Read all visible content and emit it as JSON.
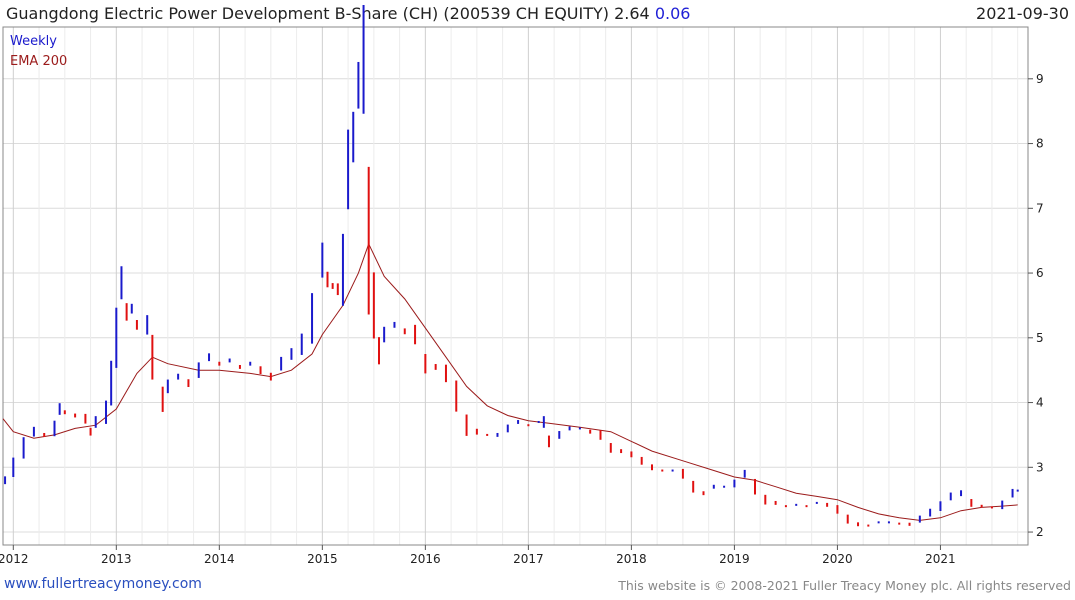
{
  "header": {
    "title": "Guangdong Electric Power Development B-Share (CH) (200539 CH EQUITY) 2.64",
    "change": "0.06",
    "date": "2021-09-30"
  },
  "footer": {
    "left": "www.fullertreacymoney.com",
    "right": "This website is © 2008-2021 Fuller Treacy Money plc. All rights reserved"
  },
  "colors": {
    "up": "#1a1acc",
    "down": "#e01010",
    "ema": "#9b1b1b",
    "grid": "#dcdcdc"
  },
  "chart_data": {
    "type": "line",
    "title": "Guangdong Electric Power Development B-Share (CH) (200539 CH EQUITY)",
    "legend": [
      "Weekly",
      "EMA 200"
    ],
    "legend_placement": "top-left",
    "grid": true,
    "x_ticks": [
      "2012",
      "2013",
      "2014",
      "2015",
      "2016",
      "2017",
      "2018",
      "2019",
      "2020",
      "2021"
    ],
    "y_ticks": [
      2,
      3,
      4,
      5,
      6,
      7,
      8,
      9
    ],
    "xlim": [
      2011.9,
      2021.85
    ],
    "ylim": [
      1.8,
      9.8
    ],
    "series": [
      {
        "name": "Weekly",
        "points": [
          [
            2011.92,
            2.8
          ],
          [
            2012.0,
            3.0
          ],
          [
            2012.1,
            3.3
          ],
          [
            2012.2,
            3.55
          ],
          [
            2012.3,
            3.5
          ],
          [
            2012.4,
            3.6
          ],
          [
            2012.45,
            3.9
          ],
          [
            2012.5,
            3.85
          ],
          [
            2012.6,
            3.8
          ],
          [
            2012.7,
            3.75
          ],
          [
            2012.75,
            3.55
          ],
          [
            2012.8,
            3.7
          ],
          [
            2012.9,
            3.85
          ],
          [
            2012.95,
            4.3
          ],
          [
            2013.0,
            5.0
          ],
          [
            2013.05,
            5.85
          ],
          [
            2013.1,
            5.4
          ],
          [
            2013.15,
            5.45
          ],
          [
            2013.2,
            5.2
          ],
          [
            2013.3,
            5.2
          ],
          [
            2013.35,
            4.7
          ],
          [
            2013.45,
            4.05
          ],
          [
            2013.5,
            4.25
          ],
          [
            2013.6,
            4.4
          ],
          [
            2013.7,
            4.3
          ],
          [
            2013.8,
            4.5
          ],
          [
            2013.9,
            4.7
          ],
          [
            2014.0,
            4.6
          ],
          [
            2014.1,
            4.65
          ],
          [
            2014.2,
            4.55
          ],
          [
            2014.3,
            4.6
          ],
          [
            2014.4,
            4.5
          ],
          [
            2014.5,
            4.4
          ],
          [
            2014.6,
            4.6
          ],
          [
            2014.7,
            4.75
          ],
          [
            2014.8,
            4.9
          ],
          [
            2014.9,
            5.3
          ],
          [
            2015.0,
            6.2
          ],
          [
            2015.05,
            5.9
          ],
          [
            2015.1,
            5.8
          ],
          [
            2015.15,
            5.75
          ],
          [
            2015.2,
            6.05
          ],
          [
            2015.25,
            7.6
          ],
          [
            2015.3,
            8.1
          ],
          [
            2015.35,
            8.9
          ],
          [
            2015.4,
            9.3
          ],
          [
            2015.45,
            6.5
          ],
          [
            2015.5,
            5.5
          ],
          [
            2015.55,
            4.8
          ],
          [
            2015.6,
            5.05
          ],
          [
            2015.7,
            5.2
          ],
          [
            2015.8,
            5.1
          ],
          [
            2015.9,
            5.05
          ],
          [
            2016.0,
            4.6
          ],
          [
            2016.1,
            4.55
          ],
          [
            2016.2,
            4.45
          ],
          [
            2016.3,
            4.1
          ],
          [
            2016.4,
            3.65
          ],
          [
            2016.5,
            3.55
          ],
          [
            2016.6,
            3.5
          ],
          [
            2016.7,
            3.5
          ],
          [
            2016.8,
            3.6
          ],
          [
            2016.9,
            3.7
          ],
          [
            2017.0,
            3.65
          ],
          [
            2017.1,
            3.7
          ],
          [
            2017.15,
            3.7
          ],
          [
            2017.2,
            3.4
          ],
          [
            2017.3,
            3.5
          ],
          [
            2017.4,
            3.6
          ],
          [
            2017.5,
            3.6
          ],
          [
            2017.6,
            3.55
          ],
          [
            2017.7,
            3.5
          ],
          [
            2017.8,
            3.3
          ],
          [
            2017.9,
            3.25
          ],
          [
            2018.0,
            3.2
          ],
          [
            2018.1,
            3.1
          ],
          [
            2018.2,
            3.0
          ],
          [
            2018.3,
            2.95
          ],
          [
            2018.4,
            2.95
          ],
          [
            2018.5,
            2.9
          ],
          [
            2018.6,
            2.7
          ],
          [
            2018.7,
            2.6
          ],
          [
            2018.8,
            2.7
          ],
          [
            2018.9,
            2.7
          ],
          [
            2019.0,
            2.75
          ],
          [
            2019.1,
            2.9
          ],
          [
            2019.2,
            2.7
          ],
          [
            2019.3,
            2.5
          ],
          [
            2019.4,
            2.45
          ],
          [
            2019.5,
            2.4
          ],
          [
            2019.6,
            2.42
          ],
          [
            2019.7,
            2.4
          ],
          [
            2019.8,
            2.45
          ],
          [
            2019.9,
            2.42
          ],
          [
            2020.0,
            2.35
          ],
          [
            2020.1,
            2.2
          ],
          [
            2020.2,
            2.12
          ],
          [
            2020.3,
            2.1
          ],
          [
            2020.4,
            2.15
          ],
          [
            2020.5,
            2.15
          ],
          [
            2020.6,
            2.13
          ],
          [
            2020.7,
            2.12
          ],
          [
            2020.8,
            2.2
          ],
          [
            2020.9,
            2.3
          ],
          [
            2021.0,
            2.4
          ],
          [
            2021.1,
            2.55
          ],
          [
            2021.2,
            2.6
          ],
          [
            2021.3,
            2.45
          ],
          [
            2021.4,
            2.4
          ],
          [
            2021.5,
            2.38
          ],
          [
            2021.6,
            2.42
          ],
          [
            2021.7,
            2.6
          ],
          [
            2021.75,
            2.64
          ]
        ]
      },
      {
        "name": "EMA 200",
        "points": [
          [
            2011.9,
            3.75
          ],
          [
            2012.0,
            3.55
          ],
          [
            2012.2,
            3.45
          ],
          [
            2012.4,
            3.5
          ],
          [
            2012.6,
            3.6
          ],
          [
            2012.8,
            3.65
          ],
          [
            2013.0,
            3.9
          ],
          [
            2013.2,
            4.45
          ],
          [
            2013.35,
            4.7
          ],
          [
            2013.5,
            4.6
          ],
          [
            2013.8,
            4.5
          ],
          [
            2014.0,
            4.5
          ],
          [
            2014.3,
            4.45
          ],
          [
            2014.5,
            4.4
          ],
          [
            2014.7,
            4.5
          ],
          [
            2014.9,
            4.75
          ],
          [
            2015.0,
            5.05
          ],
          [
            2015.2,
            5.5
          ],
          [
            2015.35,
            6.0
          ],
          [
            2015.45,
            6.45
          ],
          [
            2015.6,
            5.95
          ],
          [
            2015.8,
            5.6
          ],
          [
            2016.0,
            5.15
          ],
          [
            2016.2,
            4.7
          ],
          [
            2016.4,
            4.25
          ],
          [
            2016.6,
            3.95
          ],
          [
            2016.8,
            3.8
          ],
          [
            2017.0,
            3.72
          ],
          [
            2017.2,
            3.68
          ],
          [
            2017.5,
            3.62
          ],
          [
            2017.8,
            3.55
          ],
          [
            2018.0,
            3.4
          ],
          [
            2018.2,
            3.25
          ],
          [
            2018.5,
            3.1
          ],
          [
            2018.8,
            2.95
          ],
          [
            2019.0,
            2.85
          ],
          [
            2019.2,
            2.8
          ],
          [
            2019.4,
            2.7
          ],
          [
            2019.6,
            2.6
          ],
          [
            2019.8,
            2.55
          ],
          [
            2020.0,
            2.5
          ],
          [
            2020.2,
            2.38
          ],
          [
            2020.4,
            2.28
          ],
          [
            2020.6,
            2.22
          ],
          [
            2020.8,
            2.18
          ],
          [
            2021.0,
            2.22
          ],
          [
            2021.2,
            2.33
          ],
          [
            2021.4,
            2.38
          ],
          [
            2021.6,
            2.4
          ],
          [
            2021.75,
            2.42
          ]
        ]
      }
    ]
  }
}
